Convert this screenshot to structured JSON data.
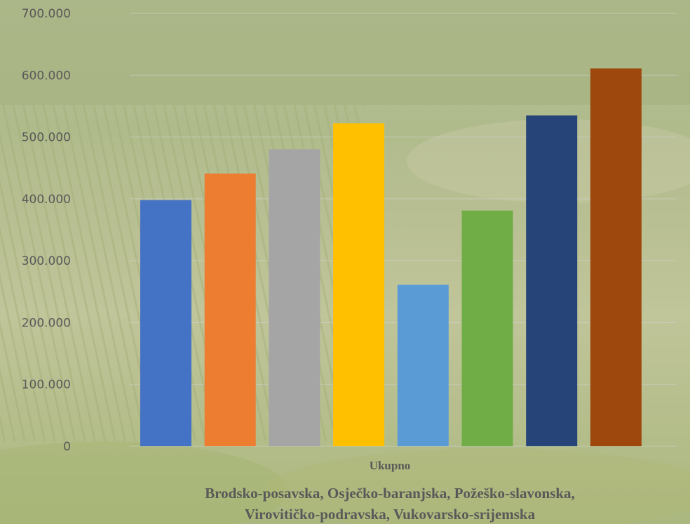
{
  "chart_data": {
    "type": "bar",
    "categories": [
      "Ukupno"
    ],
    "series": [
      {
        "values": [
          398000
        ],
        "color": "#4472C4"
      },
      {
        "values": [
          441000
        ],
        "color": "#ED7D31"
      },
      {
        "values": [
          480000
        ],
        "color": "#A5A5A5"
      },
      {
        "values": [
          522000
        ],
        "color": "#FFC000"
      },
      {
        "values": [
          261000
        ],
        "color": "#5B9BD5"
      },
      {
        "values": [
          381000
        ],
        "color": "#70AD47"
      },
      {
        "values": [
          535000
        ],
        "color": "#264478"
      },
      {
        "values": [
          611000
        ],
        "color": "#9E480E"
      }
    ],
    "yticks": [
      "0",
      "100.000",
      "200.000",
      "300.000",
      "400.000",
      "500.000",
      "600.000",
      "700.000"
    ],
    "ylim": [
      0,
      700000
    ],
    "grid": true,
    "legend": "none",
    "xlabel_lines": [
      "Brodsko-posavska, Osječko-baranjska, Požeško-slavonska,",
      "Virovitičko-podravska, Vukovarsko-srijemska"
    ],
    "background": "vineyard landscape photo"
  }
}
